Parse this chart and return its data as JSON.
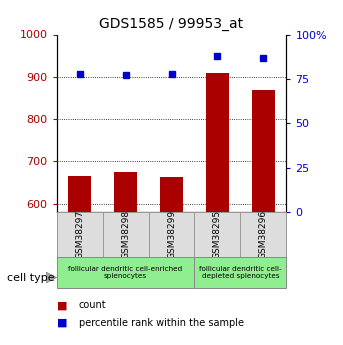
{
  "title": "GDS1585 / 99953_at",
  "samples": [
    "GSM38297",
    "GSM38298",
    "GSM38299",
    "GSM38295",
    "GSM38296"
  ],
  "counts": [
    665,
    675,
    663,
    910,
    868
  ],
  "percentile_ranks": [
    78,
    77,
    78,
    88,
    87
  ],
  "ylim_left": [
    580,
    1000
  ],
  "ylim_right": [
    0,
    100
  ],
  "yticks_left": [
    600,
    700,
    800,
    900,
    1000
  ],
  "ytick_labels_left": [
    "600",
    "700",
    "800",
    "900",
    "1000"
  ],
  "yticks_right": [
    0,
    25,
    50,
    75,
    100
  ],
  "ytick_labels_right": [
    "0",
    "25",
    "50",
    "75",
    "100%"
  ],
  "bar_color": "#AA0000",
  "dot_color": "#0000CC",
  "bar_width": 0.5,
  "grid_color": "black",
  "group1_label": "follicular dendritic cell-enriched\nsplenocytes",
  "group2_label": "follicular dendritic cell-\ndepleted splenocytes",
  "group_color": "#90EE90",
  "legend_items": [
    {
      "label": "count",
      "color": "#AA0000"
    },
    {
      "label": "percentile rank within the sample",
      "color": "#0000CC"
    }
  ],
  "cell_type_label": "cell type",
  "left_ylabel_color": "#AA0000",
  "right_ylabel_color": "#0000CC"
}
